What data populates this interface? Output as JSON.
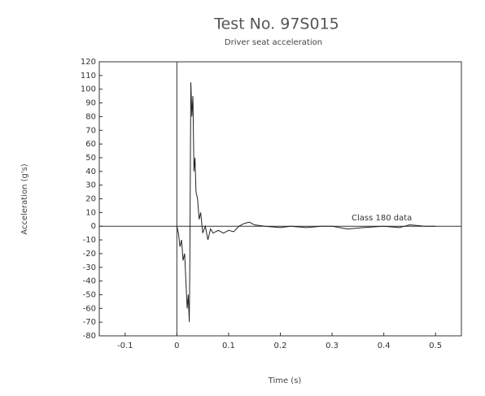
{
  "chart_data": {
    "type": "line",
    "title": "Test No. 97S015",
    "subtitle": "Driver seat acceleration",
    "x_label": "Time (s)",
    "y_label": "Acceleration (g's)",
    "annotation": "Class 180 data",
    "color": "#222222",
    "x": [
      0,
      0.003,
      0.006,
      0.009,
      0.012,
      0.015,
      0.018,
      0.02,
      0.022,
      0.024,
      0.025,
      0.026,
      0.027,
      0.029,
      0.031,
      0.033,
      0.035,
      0.037,
      0.04,
      0.043,
      0.046,
      0.05,
      0.055,
      0.06,
      0.065,
      0.07,
      0.08,
      0.09,
      0.1,
      0.11,
      0.12,
      0.13,
      0.14,
      0.15,
      0.17,
      0.2,
      0.22,
      0.25,
      0.28,
      0.3,
      0.33,
      0.36,
      0.4,
      0.43,
      0.45,
      0.48,
      0.5
    ],
    "values": [
      0,
      -5,
      -15,
      -10,
      -25,
      -20,
      -45,
      -60,
      -50,
      -70,
      -30,
      40,
      105,
      80,
      95,
      40,
      50,
      25,
      20,
      5,
      10,
      -5,
      0,
      -10,
      -2,
      -5,
      -3,
      -5,
      -3,
      -4,
      0,
      2,
      3,
      1,
      0,
      -1,
      0,
      -1,
      0,
      0,
      -2,
      -1,
      0,
      -1,
      1,
      0,
      0
    ],
    "xlim": [
      -0.15,
      0.55
    ],
    "xticks": [
      -0.1,
      0,
      0.1,
      0.2,
      0.3,
      0.4,
      0.5
    ],
    "ylim": [
      -80,
      120
    ],
    "yticks": [
      -80,
      -70,
      -60,
      -50,
      -40,
      -30,
      -20,
      -10,
      0,
      10,
      20,
      30,
      40,
      50,
      60,
      70,
      80,
      90,
      100,
      110,
      120
    ],
    "zero_lines": true
  }
}
